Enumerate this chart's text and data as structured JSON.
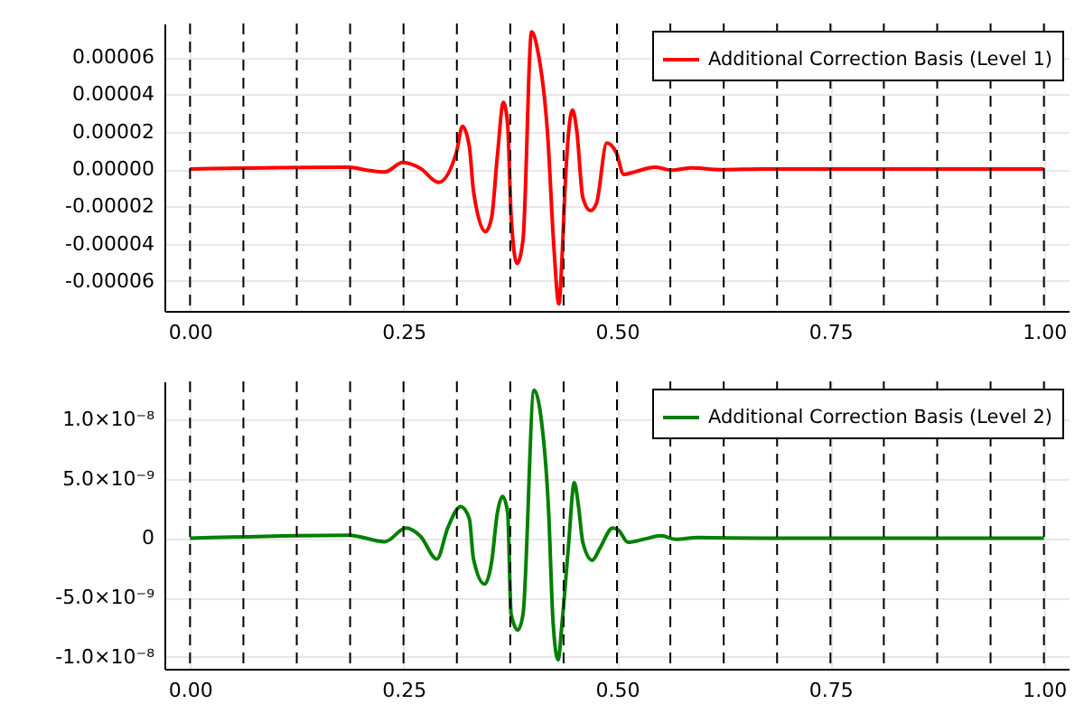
{
  "chart_data": [
    {
      "type": "line",
      "x": [
        0,
        0.186,
        0.207,
        0.228,
        0.249,
        0.27,
        0.291,
        0.312,
        0.319,
        0.327,
        0.332,
        0.346,
        0.353,
        0.36,
        0.367,
        0.372,
        0.376,
        0.383,
        0.39,
        0.4,
        0.407,
        0.419,
        0.426,
        0.432,
        0.436,
        0.439,
        0.448,
        0.453,
        0.46,
        0.469,
        0.476,
        0.488,
        0.499,
        0.508,
        0.52,
        0.545,
        0.564,
        0.587,
        0.622,
        0.671,
        1
      ],
      "series": [
        {
          "name": "Additional Correction Basis (Level 1)",
          "color": "#ff0000",
          "values": [
            0,
            1e-06,
            -6e-07,
            -1.6e-06,
            3.5e-06,
            3e-07,
            -7.1e-06,
            9e-06,
            2.29e-05,
            1.23e-05,
            -1.19e-05,
            -3.35e-05,
            -2.65e-05,
            7.4e-06,
            3.58e-05,
            2.35e-05,
            -2.48e-05,
            -5.06e-05,
            -3.77e-05,
            7.35e-05,
            6.39e-05,
            1.71e-05,
            -4.1e-05,
            -7.23e-05,
            -4.42e-05,
            -1.19e-05,
            3.16e-05,
            2.03e-05,
            -1.52e-05,
            -2.23e-05,
            -1.84e-05,
            1.39e-05,
            9e-06,
            -2.9e-06,
            -1.6e-06,
            1e-06,
            -6e-07,
            6e-07,
            -3e-07,
            0,
            0
          ]
        }
      ],
      "xlim": [
        -0.03,
        1.03
      ],
      "xticks": [
        {
          "value": 0,
          "label": "0.00"
        },
        {
          "value": 0.25,
          "label": "0.25"
        },
        {
          "value": 0.5,
          "label": "0.50"
        },
        {
          "value": 0.75,
          "label": "0.75"
        },
        {
          "value": 1,
          "label": "1.00"
        }
      ],
      "ylim": [
        -7.6e-05,
        7.8e-05
      ],
      "yticks": [
        {
          "value": -6e-05,
          "label": "-0.00006"
        },
        {
          "value": -4e-05,
          "label": "-0.00004"
        },
        {
          "value": -2e-05,
          "label": "-0.00002"
        },
        {
          "value": 0,
          "label": "0.00000"
        },
        {
          "value": 2e-05,
          "label": "0.00002"
        },
        {
          "value": 4e-05,
          "label": "0.00004"
        },
        {
          "value": 6e-05,
          "label": "0.00006"
        }
      ],
      "ref_lines": [
        {
          "axis": "x",
          "value": 0,
          "color": "#000000",
          "line_style": "dashed"
        },
        {
          "axis": "x",
          "value": 0.0625,
          "color": "#000000",
          "line_style": "dashed"
        },
        {
          "axis": "x",
          "value": 0.125,
          "color": "#000000",
          "line_style": "dashed"
        },
        {
          "axis": "x",
          "value": 0.1875,
          "color": "#000000",
          "line_style": "dashed"
        },
        {
          "axis": "x",
          "value": 0.25,
          "color": "#000000",
          "line_style": "dashed"
        },
        {
          "axis": "x",
          "value": 0.3125,
          "color": "#000000",
          "line_style": "dashed"
        },
        {
          "axis": "x",
          "value": 0.375,
          "color": "#000000",
          "line_style": "dashed"
        },
        {
          "axis": "x",
          "value": 0.4375,
          "color": "#000000",
          "line_style": "dashed"
        },
        {
          "axis": "x",
          "value": 0.5,
          "color": "#000000",
          "line_style": "dashed"
        },
        {
          "axis": "x",
          "value": 0.5625,
          "color": "#000000",
          "line_style": "dashed"
        },
        {
          "axis": "x",
          "value": 0.625,
          "color": "#000000",
          "line_style": "dashed"
        },
        {
          "axis": "x",
          "value": 0.6875,
          "color": "#000000",
          "line_style": "dashed"
        },
        {
          "axis": "x",
          "value": 0.75,
          "color": "#000000",
          "line_style": "dashed"
        },
        {
          "axis": "x",
          "value": 0.8125,
          "color": "#000000",
          "line_style": "dashed"
        },
        {
          "axis": "x",
          "value": 0.875,
          "color": "#000000",
          "line_style": "dashed"
        },
        {
          "axis": "x",
          "value": 0.9375,
          "color": "#000000",
          "line_style": "dashed"
        },
        {
          "axis": "x",
          "value": 1,
          "color": "#000000",
          "line_style": "dashed"
        }
      ],
      "grid": true,
      "legend": "top right"
    },
    {
      "type": "line",
      "x": [
        0,
        0.186,
        0.228,
        0.253,
        0.27,
        0.289,
        0.302,
        0.317,
        0.327,
        0.332,
        0.345,
        0.353,
        0.36,
        0.366,
        0.372,
        0.376,
        0.384,
        0.39,
        0.403,
        0.41,
        0.42,
        0.425,
        0.431,
        0.436,
        0.443,
        0.45,
        0.455,
        0.46,
        0.471,
        0.48,
        0.495,
        0.502,
        0.513,
        0.531,
        0.552,
        0.569,
        0.594,
        0.671,
        1
      ],
      "series": [
        {
          "name": "Additional Correction Basis (Level 2)",
          "color": "#008000",
          "values": [
            0,
            2.5e-10,
            -3e-10,
            8.5e-10,
            1.5e-10,
            -1.76e-09,
            9e-10,
            2.66e-09,
            1.66e-09,
            -1.76e-09,
            -3.87e-09,
            -2.11e-09,
            2.16e-09,
            3.52e-09,
            2.16e-09,
            -6.38e-09,
            -7.74e-09,
            -6.38e-09,
            1.246e-08,
            1.07e-08,
            2.16e-09,
            -6.88e-09,
            -1.025e-08,
            -6.88e-09,
            -8.5e-10,
            4.67e-09,
            2.66e-09,
            -3.5e-10,
            -1.86e-09,
            -8.5e-10,
            8.5e-10,
            6.5e-10,
            -3.5e-10,
            -1e-10,
            2e-10,
            -1e-10,
            5e-11,
            0,
            0
          ]
        }
      ],
      "xlim": [
        -0.03,
        1.03
      ],
      "xticks": [
        {
          "value": 0,
          "label": "0.00"
        },
        {
          "value": 0.25,
          "label": "0.25"
        },
        {
          "value": 0.5,
          "label": "0.50"
        },
        {
          "value": 0.75,
          "label": "0.75"
        },
        {
          "value": 1,
          "label": "1.00"
        }
      ],
      "ylim": [
        -1.1e-08,
        1.32e-08
      ],
      "yticks": [
        {
          "value": -1e-08,
          "label": "-1.0×10⁻⁸"
        },
        {
          "value": -5e-09,
          "label": "-5.0×10⁻⁹"
        },
        0,
        {
          "value": 5e-09,
          "label": "5.0×10⁻⁹"
        },
        {
          "value": 1e-08,
          "label": "1.0×10⁻⁸"
        }
      ],
      "ref_lines": [
        {
          "axis": "x",
          "value": 0,
          "color": "#000000",
          "line_style": "dashed"
        },
        {
          "axis": "x",
          "value": 0.0625,
          "color": "#000000",
          "line_style": "dashed"
        },
        {
          "axis": "x",
          "value": 0.125,
          "color": "#000000",
          "line_style": "dashed"
        },
        {
          "axis": "x",
          "value": 0.1875,
          "color": "#000000",
          "line_style": "dashed"
        },
        {
          "axis": "x",
          "value": 0.25,
          "color": "#000000",
          "line_style": "dashed"
        },
        {
          "axis": "x",
          "value": 0.3125,
          "color": "#000000",
          "line_style": "dashed"
        },
        {
          "axis": "x",
          "value": 0.375,
          "color": "#000000",
          "line_style": "dashed"
        },
        {
          "axis": "x",
          "value": 0.4375,
          "color": "#000000",
          "line_style": "dashed"
        },
        {
          "axis": "x",
          "value": 0.5,
          "color": "#000000",
          "line_style": "dashed"
        },
        {
          "axis": "x",
          "value": 0.5625,
          "color": "#000000",
          "line_style": "dashed"
        },
        {
          "axis": "x",
          "value": 0.625,
          "color": "#000000",
          "line_style": "dashed"
        },
        {
          "axis": "x",
          "value": 0.6875,
          "color": "#000000",
          "line_style": "dashed"
        },
        {
          "axis": "x",
          "value": 0.75,
          "color": "#000000",
          "line_style": "dashed"
        },
        {
          "axis": "x",
          "value": 0.8125,
          "color": "#000000",
          "line_style": "dashed"
        },
        {
          "axis": "x",
          "value": 0.875,
          "color": "#000000",
          "line_style": "dashed"
        },
        {
          "axis": "x",
          "value": 0.9375,
          "color": "#000000",
          "line_style": "dashed"
        },
        {
          "axis": "x",
          "value": 1,
          "color": "#000000",
          "line_style": "dashed"
        }
      ],
      "grid": true,
      "legend": "top right"
    }
  ]
}
